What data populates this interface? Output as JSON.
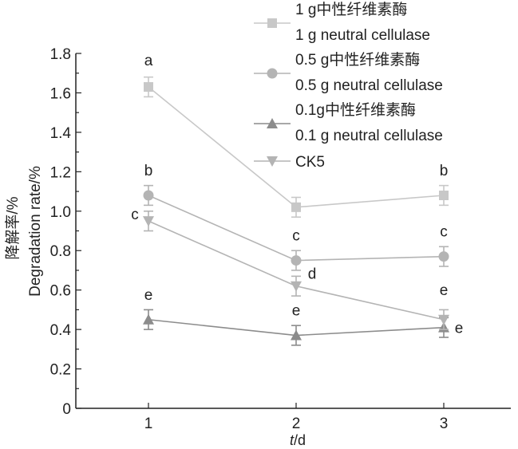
{
  "chart_data": {
    "type": "line",
    "title": "",
    "xlabel_italic": "t",
    "xlabel_unit": "/d",
    "ylabel_cn": "降解率/%",
    "ylabel_en": "Degradation rate/%",
    "x": [
      1,
      2,
      3
    ],
    "x_tick_labels": [
      "1",
      "2",
      "3"
    ],
    "ylim": [
      0,
      1.8
    ],
    "y_ticks": [
      0,
      0.2,
      0.4,
      0.6,
      0.8,
      1.0,
      1.2,
      1.4,
      1.6,
      1.8
    ],
    "y_tick_labels": [
      "0",
      "0.2",
      "0.4",
      "0.6",
      "0.8",
      "1.0",
      "1.2",
      "1.4",
      "1.6",
      "1.8"
    ],
    "legend_placement": "top-right",
    "series": [
      {
        "name_cn": "1 g中性纤维素酶",
        "name_en": "1 g neutral cellulase",
        "marker": "square",
        "color": "#c8c8c8",
        "values": [
          1.63,
          1.02,
          1.08
        ],
        "errors": [
          0.05,
          0.05,
          0.05
        ],
        "letters": [
          "a",
          "",
          "b"
        ]
      },
      {
        "name_cn": "0.5 g中性纤维素酶",
        "name_en": "0.5 g neutral cellulase",
        "marker": "circle",
        "color": "#b4b4b4",
        "values": [
          1.08,
          0.75,
          0.77
        ],
        "errors": [
          0.05,
          0.05,
          0.05
        ],
        "letters": [
          "b",
          "c",
          "c"
        ]
      },
      {
        "name_cn": "0.1g中性纤维素酶",
        "name_en": "0.1 g neutral cellulase",
        "marker": "triangle-up",
        "color": "#8c8c8c",
        "values": [
          0.45,
          0.37,
          0.41
        ],
        "errors": [
          0.05,
          0.05,
          0.05
        ],
        "letters": [
          "e",
          "e",
          "e"
        ]
      },
      {
        "name_cn": "",
        "name_en": "CK5",
        "marker": "triangle-down",
        "color": "#b4b4b4",
        "values": [
          0.95,
          0.62,
          0.45
        ],
        "errors": [
          0.05,
          0.05,
          0.05
        ],
        "letters": [
          "c",
          "d",
          "e"
        ]
      }
    ]
  }
}
